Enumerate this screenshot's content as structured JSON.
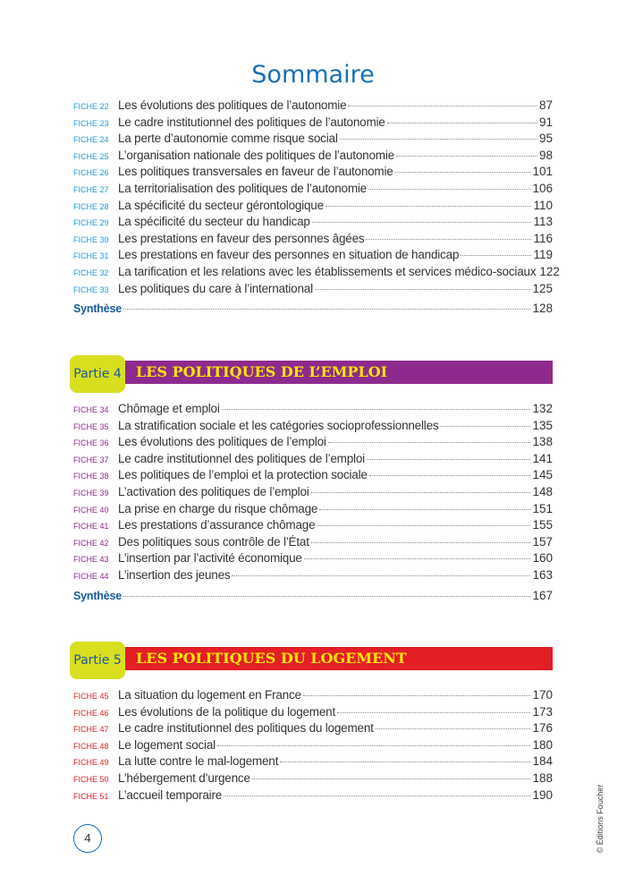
{
  "title": "Sommaire",
  "colors": {
    "section1": "#1e9be0",
    "partie4": "#8e2a8e",
    "partie5": "#e31e24",
    "partie_box": "#d9df1f",
    "partie_title": "#ffe600",
    "synthese": "#1a5aa0"
  },
  "section1": {
    "rows": [
      {
        "fiche": "FICHE 22",
        "label": "Les évolutions des politiques de l’autonomie",
        "page": "87"
      },
      {
        "fiche": "FICHE 23",
        "label": "Le cadre institutionnel des politiques de l’autonomie",
        "page": "91"
      },
      {
        "fiche": "FICHE 24",
        "label": "La perte d’autonomie comme risque social",
        "page": "95"
      },
      {
        "fiche": "FICHE 25",
        "label": "L’organisation nationale des politiques de l’autonomie",
        "page": "98"
      },
      {
        "fiche": "FICHE 26",
        "label": "Les politiques transversales en faveur de l’autonomie",
        "page": "101"
      },
      {
        "fiche": "FICHE 27",
        "label": "La territorialisation des politiques de l’autonomie",
        "page": "106"
      },
      {
        "fiche": "FICHE 28",
        "label": "La spécificité du secteur gérontologique",
        "page": "110"
      },
      {
        "fiche": "FICHE 29",
        "label": "La spécificité du secteur du handicap",
        "page": "113"
      },
      {
        "fiche": "FICHE 30",
        "label": "Les prestations en faveur des personnes âgées",
        "page": "116"
      },
      {
        "fiche": "FICHE 31",
        "label": "Les prestations en faveur des personnes en situation de handicap",
        "page": "119"
      },
      {
        "fiche": "FICHE 32",
        "label": "La tarification et les relations avec les établissements et services médico-sociaux",
        "page": "122"
      },
      {
        "fiche": "FICHE 33",
        "label": "Les politiques du care à l’international",
        "page": "125"
      }
    ],
    "synthese": {
      "label": "Synthèse",
      "page": "128"
    }
  },
  "partie4": {
    "partie": "Partie 4",
    "title": "LES POLITIQUES DE L’EMPLOI",
    "rows": [
      {
        "fiche": "FICHE 34",
        "label": "Chômage et emploi",
        "page": "132"
      },
      {
        "fiche": "FICHE 35",
        "label": "La stratification sociale et les catégories socioprofessionnelles",
        "page": "135"
      },
      {
        "fiche": "FICHE 36",
        "label": "Les évolutions des politiques de l’emploi",
        "page": "138"
      },
      {
        "fiche": "FICHE 37",
        "label": "Le cadre institutionnel des politiques de l’emploi",
        "page": "141"
      },
      {
        "fiche": "FICHE 38",
        "label": "Les politiques de l’emploi et la protection sociale",
        "page": "145"
      },
      {
        "fiche": "FICHE 39",
        "label": "L’activation des politiques de l’emploi",
        "page": "148"
      },
      {
        "fiche": "FICHE 40",
        "label": "La prise en charge du risque chômage",
        "page": "151"
      },
      {
        "fiche": "FICHE 41",
        "label": "Les prestations d’assurance chômage",
        "page": "155"
      },
      {
        "fiche": "FICHE 42",
        "label": "Des politiques sous contrôle de l’État",
        "page": "157"
      },
      {
        "fiche": "FICHE 43",
        "label": "L’insertion par l’activité économique",
        "page": "160"
      },
      {
        "fiche": "FICHE 44",
        "label": "L’insertion des jeunes",
        "page": "163"
      }
    ],
    "synthese": {
      "label": "Synthèse",
      "page": "167"
    }
  },
  "partie5": {
    "partie": "Partie 5",
    "title": "LES POLITIQUES DU LOGEMENT",
    "rows": [
      {
        "fiche": "FICHE 45",
        "label": "La situation du logement en France",
        "page": "170"
      },
      {
        "fiche": "FICHE 46",
        "label": "Les évolutions de la politique du logement",
        "page": "173"
      },
      {
        "fiche": "FICHE 47",
        "label": "Le cadre institutionnel des politiques du logement",
        "page": "176"
      },
      {
        "fiche": "FICHE 48",
        "label": "Le logement social",
        "page": "180"
      },
      {
        "fiche": "FICHE 49",
        "label": "La lutte contre le mal-logement",
        "page": "184"
      },
      {
        "fiche": "FICHE 50",
        "label": "L’hébergement d’urgence",
        "page": "188"
      },
      {
        "fiche": "FICHE 51",
        "label": "L’accueil temporaire",
        "page": "190"
      }
    ]
  },
  "page_number": "4",
  "copyright": "© Éditions Foucher"
}
